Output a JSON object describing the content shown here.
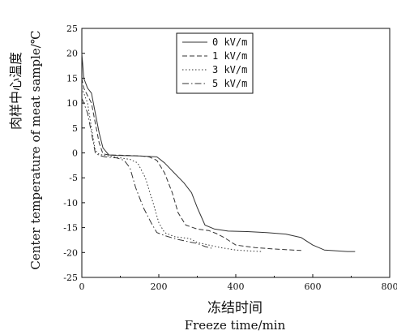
{
  "chart_data": {
    "type": "line",
    "xlabel_cn": "冻结时间",
    "xlabel": "Freeze time/min",
    "ylabel_cn": "肉样中心温度",
    "ylabel": "Center temperature of meat sample/℃",
    "xlim": [
      0,
      800
    ],
    "ylim": [
      -25,
      25
    ],
    "xticks": [
      0,
      200,
      400,
      600,
      800
    ],
    "yticks": [
      25,
      20,
      15,
      10,
      5,
      0,
      -5,
      -10,
      -15,
      -20,
      -25
    ],
    "grid": false,
    "legend_position": "top-center",
    "series": [
      {
        "name": "0 kV/m",
        "color": "#333333",
        "dash": "solid",
        "points": [
          [
            0,
            20
          ],
          [
            5,
            15
          ],
          [
            15,
            13
          ],
          [
            25,
            12
          ],
          [
            35,
            8
          ],
          [
            45,
            4
          ],
          [
            55,
            1
          ],
          [
            70,
            -0.4
          ],
          [
            90,
            -0.5
          ],
          [
            150,
            -0.6
          ],
          [
            195,
            -0.8
          ],
          [
            215,
            -2
          ],
          [
            240,
            -4
          ],
          [
            265,
            -6
          ],
          [
            285,
            -8
          ],
          [
            300,
            -11
          ],
          [
            320,
            -14.5
          ],
          [
            345,
            -15.3
          ],
          [
            380,
            -15.7
          ],
          [
            430,
            -15.8
          ],
          [
            480,
            -16
          ],
          [
            530,
            -16.3
          ],
          [
            570,
            -17
          ],
          [
            600,
            -18.5
          ],
          [
            630,
            -19.5
          ],
          [
            690,
            -19.8
          ],
          [
            710,
            -19.8
          ]
        ]
      },
      {
        "name": "1 kV/m",
        "color": "#333333",
        "dash": "6,3",
        "points": [
          [
            0,
            15
          ],
          [
            5,
            13
          ],
          [
            15,
            11.5
          ],
          [
            25,
            10
          ],
          [
            35,
            6
          ],
          [
            45,
            2
          ],
          [
            55,
            -0.2
          ],
          [
            70,
            -0.4
          ],
          [
            120,
            -0.5
          ],
          [
            150,
            -0.6
          ],
          [
            175,
            -0.8
          ],
          [
            195,
            -1.5
          ],
          [
            215,
            -4
          ],
          [
            235,
            -8
          ],
          [
            250,
            -12
          ],
          [
            270,
            -14.5
          ],
          [
            300,
            -15.3
          ],
          [
            330,
            -15.6
          ],
          [
            350,
            -16.2
          ],
          [
            370,
            -17
          ],
          [
            400,
            -18.5
          ],
          [
            450,
            -19
          ],
          [
            500,
            -19.3
          ],
          [
            570,
            -19.6
          ]
        ]
      },
      {
        "name": "3 kV/m",
        "color": "#333333",
        "dash": "1.5,2.5",
        "points": [
          [
            0,
            13
          ],
          [
            5,
            12
          ],
          [
            15,
            10
          ],
          [
            25,
            5
          ],
          [
            35,
            0.5
          ],
          [
            45,
            -0.3
          ],
          [
            60,
            -0.5
          ],
          [
            100,
            -1
          ],
          [
            125,
            -1.3
          ],
          [
            145,
            -2
          ],
          [
            165,
            -5
          ],
          [
            185,
            -10
          ],
          [
            200,
            -14
          ],
          [
            215,
            -16
          ],
          [
            240,
            -16.8
          ],
          [
            280,
            -17.2
          ],
          [
            300,
            -18
          ],
          [
            330,
            -18.5
          ],
          [
            360,
            -19
          ],
          [
            400,
            -19.5
          ],
          [
            440,
            -19.7
          ],
          [
            470,
            -19.8
          ]
        ]
      },
      {
        "name": "5 kV/m",
        "color": "#333333",
        "dash": "8,3,1.5,3",
        "points": [
          [
            0,
            11
          ],
          [
            5,
            10
          ],
          [
            15,
            8
          ],
          [
            25,
            4
          ],
          [
            35,
            0
          ],
          [
            45,
            -0.5
          ],
          [
            60,
            -0.8
          ],
          [
            90,
            -1
          ],
          [
            110,
            -1.5
          ],
          [
            125,
            -3
          ],
          [
            140,
            -7
          ],
          [
            160,
            -11
          ],
          [
            180,
            -14
          ],
          [
            195,
            -16
          ],
          [
            215,
            -16.6
          ],
          [
            245,
            -17.3
          ],
          [
            275,
            -17.8
          ],
          [
            300,
            -18.2
          ],
          [
            320,
            -18.8
          ],
          [
            340,
            -19.2
          ]
        ]
      }
    ]
  }
}
